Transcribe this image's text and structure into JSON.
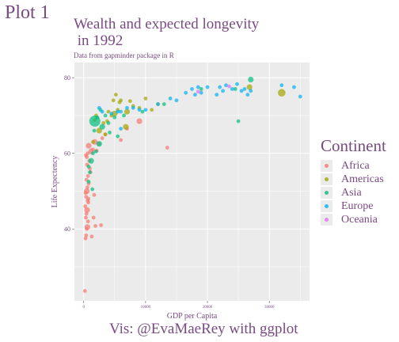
{
  "header": {
    "plot_label": "Plot 1"
  },
  "caption": "Vis: @EvaMaeRey with ggplot",
  "colors": {
    "panel": "#ebebeb",
    "grid": "#ffffff",
    "text": "#7a4a82",
    "Africa": "#f8766d",
    "Americas": "#a3a500",
    "Asia": "#00bf7d",
    "Europe": "#00b0f6",
    "Oceania": "#e76bf3"
  },
  "chart_data": {
    "type": "scatter",
    "title": "Wealth and expected longevity\n in 1992",
    "subtitle": "Data from gapminder package in R",
    "xlabel": "GDP per Capita",
    "ylabel": "Life Expectency",
    "xlim": [
      -1500,
      36500
    ],
    "ylim": [
      21,
      84
    ],
    "x_ticks": [
      0,
      10000,
      20000,
      30000
    ],
    "y_ticks": [
      40,
      60,
      80
    ],
    "legend": {
      "title": "Continent",
      "position": "right",
      "entries": [
        "Africa",
        "Americas",
        "Asia",
        "Europe",
        "Oceania"
      ]
    },
    "grid": true,
    "series": [
      {
        "name": "Africa",
        "points": [
          [
            200,
            23.6,
            1
          ],
          [
            300,
            37.5,
            1
          ],
          [
            400,
            38.3,
            1
          ],
          [
            500,
            40,
            1
          ],
          [
            600,
            40.5,
            2
          ],
          [
            700,
            42,
            1
          ],
          [
            350,
            43,
            1
          ],
          [
            450,
            44,
            1
          ],
          [
            550,
            45,
            2
          ],
          [
            250,
            46,
            1
          ],
          [
            650,
            47.5,
            1
          ],
          [
            750,
            48,
            1
          ],
          [
            400,
            48.5,
            1
          ],
          [
            300,
            49.5,
            1
          ],
          [
            500,
            50,
            2
          ],
          [
            600,
            51,
            1
          ],
          [
            800,
            52,
            1
          ],
          [
            450,
            53,
            1
          ],
          [
            700,
            54,
            1
          ],
          [
            1000,
            56,
            1
          ],
          [
            550,
            57,
            1
          ],
          [
            900,
            58,
            1
          ],
          [
            350,
            59.5,
            1
          ],
          [
            650,
            60,
            1
          ],
          [
            1200,
            60.5,
            2
          ],
          [
            1500,
            61,
            1
          ],
          [
            800,
            62,
            2
          ],
          [
            2500,
            62.5,
            1
          ],
          [
            1800,
            63,
            2
          ],
          [
            3500,
            65,
            1
          ],
          [
            7000,
            66.5,
            1
          ],
          [
            9000,
            68.5,
            2
          ],
          [
            13500,
            61.5,
            1
          ],
          [
            1100,
            55,
            1
          ],
          [
            750,
            47,
            1
          ],
          [
            1600,
            43,
            1
          ],
          [
            2800,
            41,
            1
          ],
          [
            1300,
            38,
            1
          ],
          [
            1900,
            40.8,
            1
          ],
          [
            500,
            59,
            1
          ],
          [
            3000,
            64,
            1
          ],
          [
            1700,
            49,
            1
          ],
          [
            2100,
            60.7,
            1
          ],
          [
            6000,
            63.5,
            1
          ]
        ]
      },
      {
        "name": "Americas",
        "points": [
          [
            1500,
            63,
            1
          ],
          [
            2500,
            66,
            2
          ],
          [
            3200,
            68,
            1
          ],
          [
            3800,
            68.5,
            1
          ],
          [
            4500,
            70,
            1
          ],
          [
            5000,
            70.5,
            2
          ],
          [
            5500,
            71.5,
            1
          ],
          [
            6000,
            74,
            1
          ],
          [
            7000,
            71,
            2
          ],
          [
            8000,
            72.5,
            1
          ],
          [
            9000,
            72,
            1
          ],
          [
            10000,
            74.5,
            1
          ],
          [
            12000,
            73,
            1
          ],
          [
            2000,
            70,
            1
          ],
          [
            4000,
            71,
            1
          ],
          [
            3500,
            65,
            1
          ],
          [
            5800,
            73.5,
            1
          ],
          [
            26800,
            77.5,
            2
          ],
          [
            32000,
            76,
            3
          ],
          [
            6800,
            67,
            2
          ],
          [
            4800,
            74,
            1
          ],
          [
            1800,
            68.8,
            1
          ],
          [
            7500,
            73.8,
            1
          ],
          [
            5200,
            75.5,
            1
          ],
          [
            11000,
            71.5,
            1
          ]
        ]
      },
      {
        "name": "Asia",
        "points": [
          [
            1500,
            60,
            1
          ],
          [
            1800,
            68.5,
            4
          ],
          [
            2500,
            62.5,
            2
          ],
          [
            800,
            56.5,
            1
          ],
          [
            1200,
            58,
            2
          ],
          [
            3000,
            67,
            2
          ],
          [
            4000,
            68,
            1
          ],
          [
            1000,
            55,
            1
          ],
          [
            2000,
            60.5,
            1
          ],
          [
            3500,
            70,
            1
          ],
          [
            5000,
            69.5,
            1
          ],
          [
            6500,
            70,
            1
          ],
          [
            9500,
            71,
            1
          ],
          [
            25000,
            68.5,
            1
          ],
          [
            27000,
            79.5,
            2
          ],
          [
            1700,
            66,
            1
          ],
          [
            2200,
            69.5,
            1
          ],
          [
            5500,
            64.5,
            1
          ],
          [
            1400,
            50.5,
            1
          ],
          [
            800,
            52.5,
            1
          ],
          [
            13000,
            73,
            1
          ],
          [
            19000,
            77,
            1
          ],
          [
            24500,
            77,
            1
          ],
          [
            2700,
            71.5,
            1
          ],
          [
            4200,
            65.5,
            1
          ]
        ]
      },
      {
        "name": "Europe",
        "points": [
          [
            3000,
            71,
            1
          ],
          [
            4500,
            70.5,
            1
          ],
          [
            6000,
            71,
            1
          ],
          [
            7000,
            72,
            1
          ],
          [
            8000,
            72,
            1
          ],
          [
            9000,
            71.5,
            1
          ],
          [
            10000,
            71.5,
            1
          ],
          [
            12000,
            73,
            1
          ],
          [
            14000,
            74.5,
            1
          ],
          [
            15000,
            74,
            1
          ],
          [
            16500,
            76,
            1
          ],
          [
            17500,
            77,
            1
          ],
          [
            18500,
            77.5,
            1
          ],
          [
            19000,
            76,
            1
          ],
          [
            21500,
            75.5,
            1
          ],
          [
            22000,
            77.5,
            1
          ],
          [
            23000,
            78,
            1
          ],
          [
            24000,
            77,
            1
          ],
          [
            24800,
            78.3,
            1
          ],
          [
            25500,
            76.5,
            1
          ],
          [
            26000,
            77,
            1
          ],
          [
            26500,
            75.5,
            1
          ],
          [
            27000,
            76.5,
            1
          ],
          [
            32000,
            78,
            1
          ],
          [
            34000,
            77.5,
            1
          ],
          [
            35000,
            75,
            1
          ],
          [
            18000,
            75.5,
            1
          ],
          [
            20000,
            77.5,
            1
          ],
          [
            22500,
            76.5,
            1
          ],
          [
            6000,
            66.5,
            1
          ],
          [
            2500,
            72,
            1
          ],
          [
            5500,
            71,
            1
          ]
        ]
      },
      {
        "name": "Oceania",
        "points": [
          [
            23500,
            77.7,
            1
          ],
          [
            18500,
            76.3,
            1
          ]
        ]
      }
    ]
  }
}
